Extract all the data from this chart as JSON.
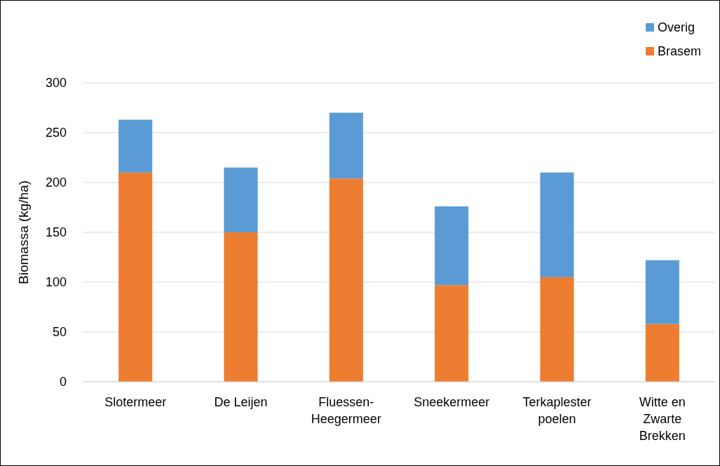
{
  "chart_data": {
    "type": "bar",
    "stacked": true,
    "ylabel": "Biomassa (kg/ha)",
    "categories": [
      "Slotermeer",
      "De Leijen",
      "Fluessen-Heegermeer",
      "Sneekermeer",
      "Terkaplester poelen",
      "Witte en Zwarte Brekken"
    ],
    "series": [
      {
        "name": "Brasem",
        "color": "#ed7d31",
        "values": [
          210,
          150,
          204,
          97,
          105,
          58
        ]
      },
      {
        "name": "Overig",
        "color": "#5b9bd5",
        "values": [
          53,
          65,
          66,
          79,
          105,
          64
        ]
      }
    ],
    "ylim": [
      0,
      300
    ],
    "yticks": [
      0,
      50,
      100,
      150,
      200,
      250,
      300
    ],
    "grid": "y",
    "legend": "top right"
  }
}
